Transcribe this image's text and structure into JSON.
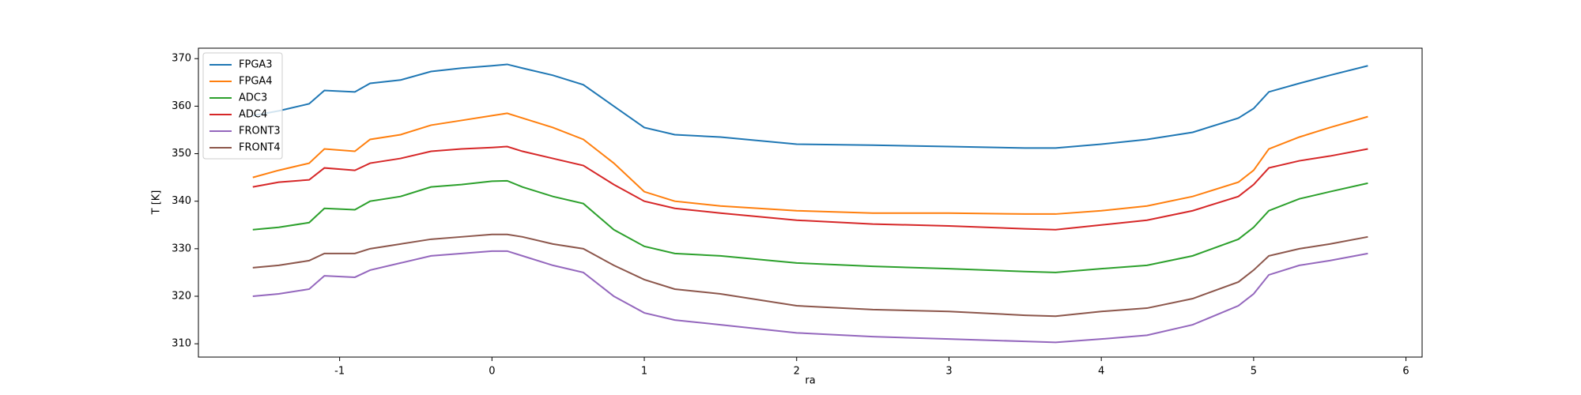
{
  "chart_data": {
    "type": "line",
    "xlabel": "ra",
    "ylabel": "T [K]",
    "x": [
      -1.57,
      -1.4,
      -1.2,
      -1.1,
      -0.9,
      -0.8,
      -0.6,
      -0.4,
      -0.2,
      0,
      0.1,
      0.2,
      0.4,
      0.6,
      0.8,
      1.0,
      1.2,
      1.5,
      2.0,
      2.5,
      3.0,
      3.5,
      3.7,
      4.0,
      4.3,
      4.6,
      4.9,
      5.0,
      5.1,
      5.3,
      5.5,
      5.75
    ],
    "series": [
      {
        "name": "FPGA3",
        "color": "#1f77b4",
        "values": [
          358,
          359,
          360.5,
          363.3,
          363,
          364.8,
          365.5,
          367.3,
          368,
          368.5,
          368.8,
          368,
          366.5,
          364.5,
          360,
          355.5,
          354,
          353.5,
          352,
          351.8,
          351.5,
          351.2,
          351.2,
          352,
          353,
          354.5,
          357.5,
          359.5,
          363,
          364.8,
          366.5,
          368.5
        ]
      },
      {
        "name": "FPGA4",
        "color": "#ff7f0e",
        "values": [
          345,
          346.5,
          348,
          351,
          350.5,
          353,
          354,
          356,
          357,
          358,
          358.5,
          357.5,
          355.5,
          353,
          348,
          342,
          340,
          339,
          338,
          337.5,
          337.5,
          337.3,
          337.3,
          338,
          339,
          341,
          344,
          346.5,
          351,
          353.5,
          355.5,
          357.8
        ]
      },
      {
        "name": "ADC3",
        "color": "#2ca02c",
        "values": [
          334,
          334.5,
          335.5,
          338.5,
          338.2,
          340,
          341,
          343,
          343.5,
          344.2,
          344.3,
          343,
          341,
          339.5,
          334,
          330.5,
          329,
          328.5,
          327,
          326.3,
          325.8,
          325.2,
          325,
          325.8,
          326.5,
          328.5,
          332,
          334.5,
          338,
          340.5,
          342,
          343.8
        ]
      },
      {
        "name": "ADC4",
        "color": "#d62728",
        "values": [
          343,
          344,
          344.5,
          347,
          346.5,
          348,
          349,
          350.5,
          351,
          351.3,
          351.5,
          350.5,
          349,
          347.5,
          343.5,
          340,
          338.5,
          337.5,
          336,
          335.2,
          334.8,
          334.2,
          334,
          335,
          336,
          338,
          341,
          343.5,
          347,
          348.5,
          349.5,
          351
        ]
      },
      {
        "name": "FRONT3",
        "color": "#9467bd",
        "values": [
          320,
          320.5,
          321.5,
          324.3,
          324,
          325.5,
          327,
          328.5,
          329,
          329.5,
          329.5,
          328.5,
          326.5,
          325,
          320,
          316.5,
          315,
          314,
          312.3,
          311.5,
          311,
          310.5,
          310.3,
          311,
          311.8,
          314,
          318,
          320.5,
          324.5,
          326.5,
          327.5,
          329
        ]
      },
      {
        "name": "FRONT4",
        "color": "#8c564b",
        "values": [
          326,
          326.5,
          327.5,
          329,
          329,
          330,
          331,
          332,
          332.5,
          333,
          333,
          332.5,
          331,
          330,
          326.5,
          323.5,
          321.5,
          320.5,
          318,
          317.2,
          316.8,
          316,
          315.8,
          316.8,
          317.5,
          319.5,
          323,
          325.5,
          328.5,
          330,
          331,
          332.5
        ]
      }
    ],
    "xlim": [
      -1.927,
      6.106
    ],
    "xticks": [
      -1,
      0,
      1,
      2,
      3,
      4,
      5,
      6
    ],
    "ylim": [
      307.2,
      372.2
    ],
    "yticks": [
      310,
      320,
      330,
      340,
      350,
      360,
      370
    ],
    "legend": "upper left"
  }
}
